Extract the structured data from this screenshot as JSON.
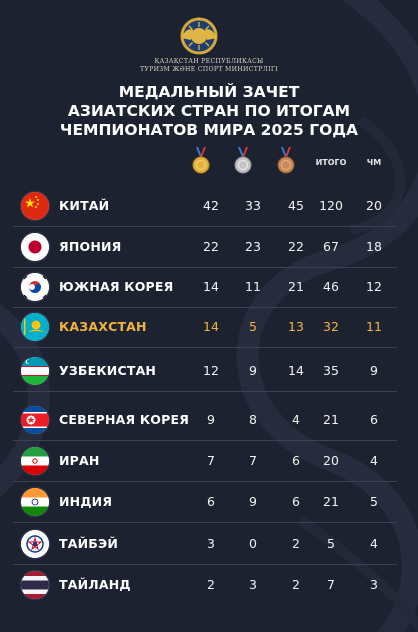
{
  "header": {
    "ministry_line1": "ҚАЗАҚСТАН РЕСПУБЛИКАСЫ",
    "ministry_line2": "ТУРИЗМ ЖӘНЕ СПОРТ МИНИСТРЛІГІ",
    "title_line1": "МЕДАЛЬНЫЙ ЗАЧЕТ",
    "title_line2": "АЗИАТСКИХ СТРАН ПО ИТОГАМ",
    "title_line3": "ЧЕМПИОНАТОВ МИРА 2025 ГОДА"
  },
  "columns": {
    "gold_icon": "gold-medal-icon",
    "silver_icon": "silver-medal-icon",
    "bronze_icon": "bronze-medal-icon",
    "total_label": "ИТОГО",
    "wc_label": "ЧМ"
  },
  "colors": {
    "highlight": "#f2b43c",
    "background": "#1d2231"
  },
  "rows": [
    {
      "country": "КИТАЙ",
      "flag": "china-flag-icon",
      "gold": "42",
      "silver": "33",
      "bronze": "45",
      "total": "120",
      "wc": "20"
    },
    {
      "country": "ЯПОНИЯ",
      "flag": "japan-flag-icon",
      "gold": "22",
      "silver": "23",
      "bronze": "22",
      "total": "67",
      "wc": "18"
    },
    {
      "country": "ЮЖНАЯ КОРЕЯ",
      "flag": "south-korea-flag-icon",
      "gold": "14",
      "silver": "11",
      "bronze": "21",
      "total": "46",
      "wc": "12"
    },
    {
      "country": "КАЗАХСТАН",
      "flag": "kazakhstan-flag-icon",
      "gold": "14",
      "silver": "5",
      "bronze": "13",
      "total": "32",
      "wc": "11",
      "highlighted": true
    },
    {
      "country": "УЗБЕКИСТАН",
      "flag": "uzbekistan-flag-icon",
      "gold": "12",
      "silver": "9",
      "bronze": "14",
      "total": "35",
      "wc": "9"
    },
    {
      "country": "СЕВЕРНАЯ КОРЕЯ",
      "flag": "north-korea-flag-icon",
      "gold": "9",
      "silver": "8",
      "bronze": "4",
      "total": "21",
      "wc": "6"
    },
    {
      "country": "ИРАН",
      "flag": "iran-flag-icon",
      "gold": "7",
      "silver": "7",
      "bronze": "6",
      "total": "20",
      "wc": "4"
    },
    {
      "country": "ИНДИЯ",
      "flag": "india-flag-icon",
      "gold": "6",
      "silver": "9",
      "bronze": "6",
      "total": "21",
      "wc": "5"
    },
    {
      "country": "ТАЙБЭЙ",
      "flag": "chinese-taipei-flag-icon",
      "gold": "3",
      "silver": "0",
      "bronze": "2",
      "total": "5",
      "wc": "4"
    },
    {
      "country": "ТАЙЛАНД",
      "flag": "thailand-flag-icon",
      "gold": "2",
      "silver": "3",
      "bronze": "2",
      "total": "7",
      "wc": "3"
    }
  ]
}
